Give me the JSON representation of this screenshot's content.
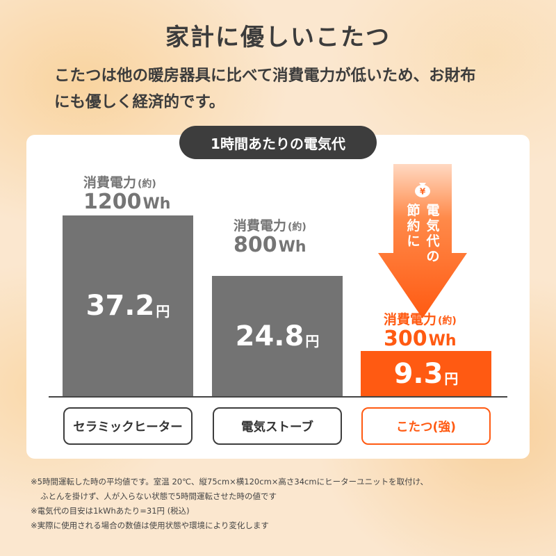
{
  "title": "家計に優しいこたつ",
  "lead_line1": "こたつは他の暖房器具に比べて消費電力が低いため、お財布",
  "lead_line2": "にも優しく経済的です。",
  "panel_heading": "1時間あたりの電気代",
  "power_label": "消費電力",
  "approx": "(約)",
  "currency_unit": "円",
  "colors": {
    "gray_bar": "#737373",
    "accent": "#ff5a12",
    "dark": "#3d3d3d"
  },
  "chart_data": {
    "type": "bar",
    "title": "1時間あたりの電気代",
    "categories": [
      "セラミックヒーター",
      "電気ストーブ",
      "こたつ(強)"
    ],
    "values": [
      37.2,
      24.8,
      9.3
    ],
    "value_labels": [
      "37.2",
      "24.8",
      "9.3"
    ],
    "power_values": [
      "1200",
      "800",
      "300"
    ],
    "power_unit": "Wh",
    "unit": "円"
  },
  "arrow": {
    "icon": "yen-purse-icon",
    "col1": [
      "節",
      "約",
      "に"
    ],
    "col2": [
      "電",
      "気",
      "代",
      "の"
    ]
  },
  "notes": [
    "※5時間運転した時の平均値です。室温 20℃、縦75cm×横120cm×高さ34cmにヒーターユニットを取付け、",
    "ふとんを掛けず、人が入らない状態で5時間運転させた時の値です",
    "※電気代の目安は1kWhあたり=31円 (税込)",
    "※実際に使用される場合の数値は使用状態や環境により変化します"
  ]
}
